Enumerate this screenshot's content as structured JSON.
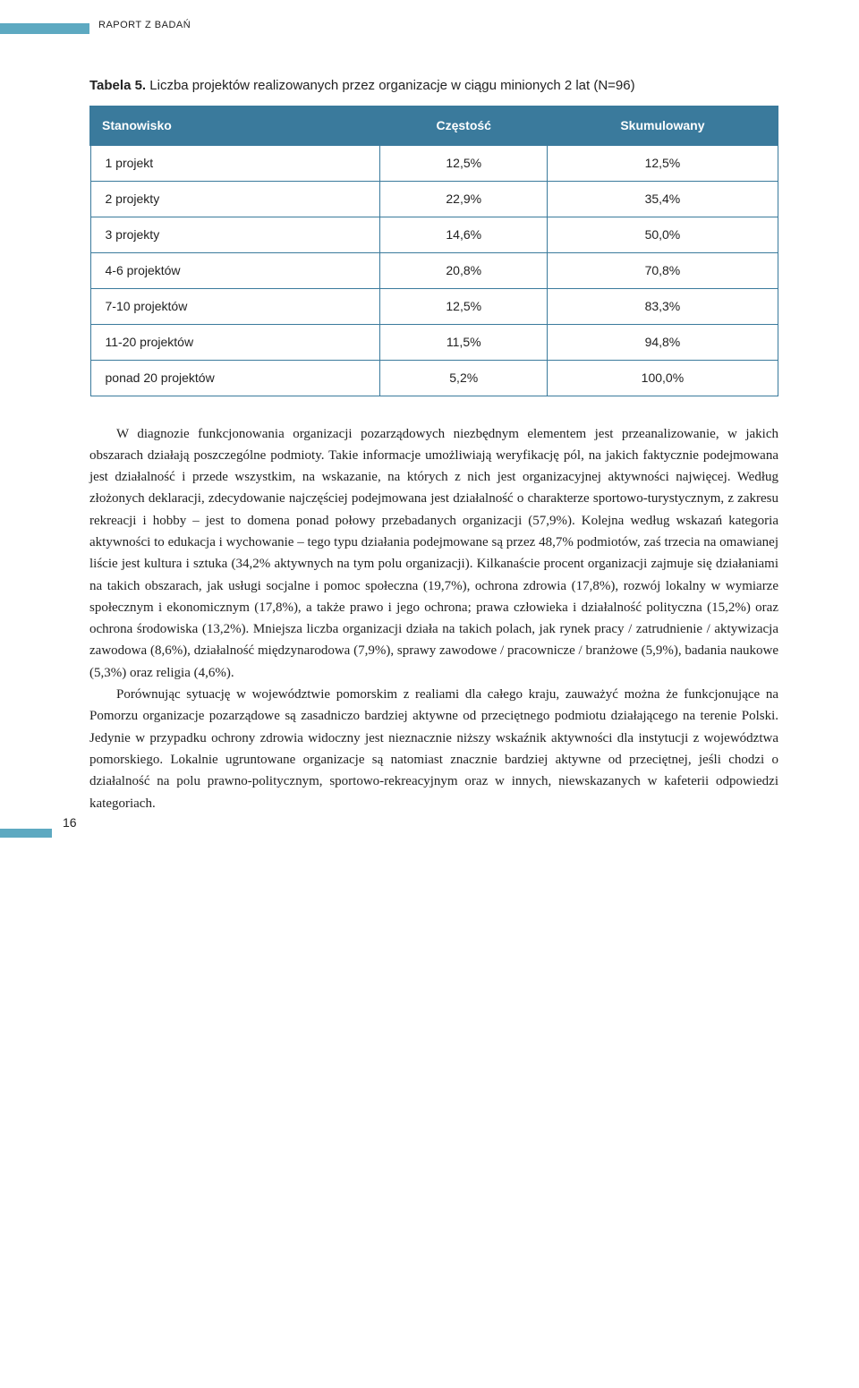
{
  "header": {
    "section_label": "RAPORT Z BADAŃ",
    "bar_color": "#5da9c1"
  },
  "table": {
    "caption_prefix": "Tabela 5.",
    "caption_text": "Liczba projektów realizowanych przez organizacje w ciągu minionych 2 lat (N=96)",
    "columns": [
      "Stanowisko",
      "Częstość",
      "Skumulowany"
    ],
    "rows": [
      [
        "1 projekt",
        "12,5%",
        "12,5%"
      ],
      [
        "2 projekty",
        "22,9%",
        "35,4%"
      ],
      [
        "3 projekty",
        "14,6%",
        "50,0%"
      ],
      [
        "4-6 projektów",
        "20,8%",
        "70,8%"
      ],
      [
        "7-10 projektów",
        "12,5%",
        "83,3%"
      ],
      [
        "11-20 projektów",
        "11,5%",
        "94,8%"
      ],
      [
        "ponad 20 projektów",
        "5,2%",
        "100,0%"
      ]
    ],
    "header_bg": "#3a7a9c",
    "header_text_color": "#ffffff",
    "border_color": "#3a7a9c",
    "fontsize": 14
  },
  "body": {
    "paragraphs": [
      "W diagnozie funkcjonowania organizacji pozarządowych niezbędnym elementem jest przeanalizowanie, w jakich obszarach działają poszczególne podmioty. Takie informacje umożliwiają weryfikację pól, na jakich faktycznie podejmowana jest działalność i przede wszystkim, na wskazanie, na których z nich jest organizacyjnej aktywności najwięcej. Według złożonych deklaracji, zdecydowanie najczęściej podejmowana jest działalność o charakterze sportowo-turystycznym, z zakresu rekreacji i hobby – jest to domena ponad połowy przebadanych organizacji (57,9%). Kolejna według wskazań kategoria aktywności to edukacja i wychowanie – tego typu działania podejmowane są przez 48,7% podmiotów, zaś trzecia na omawianej liście jest kultura i sztuka (34,2% aktywnych na tym polu organizacji). Kilkanaście procent organizacji zajmuje się działaniami na takich obszarach, jak usługi socjalne i pomoc społeczna (19,7%), ochrona zdrowia (17,8%), rozwój lokalny w wymiarze społecznym i ekonomicznym (17,8%), a także prawo i jego ochrona; prawa człowieka i działalność polityczna (15,2%) oraz ochrona środowiska (13,2%). Mniejsza liczba organizacji działa na takich polach, jak rynek pracy / zatrudnienie / aktywizacja zawodowa (8,6%), działalność międzynarodowa (7,9%), sprawy zawodowe / pracownicze / branżowe (5,9%), badania naukowe (5,3%) oraz religia (4,6%).",
      "Porównując sytuację w województwie pomorskim z realiami dla całego kraju, zauważyć można że funkcjonujące na Pomorzu organizacje pozarządowe są zasadniczo bardziej aktywne od przeciętnego podmiotu działającego na terenie Polski. Jedynie w przypadku ochrony zdrowia widoczny jest nieznacznie niższy wskaźnik aktywności dla instytucji z województwa pomorskiego. Lokalnie ugruntowane organizacje są natomiast znacznie bardziej aktywne od przeciętnej, jeśli chodzi o działalność na polu prawno-politycznym, sportowo-rekreacyjnym oraz w innych, niewskazanych w kafeterii odpowiedzi kategoriach."
    ],
    "text_color": "#222222",
    "fontsize": 15
  },
  "footer": {
    "page_number": "16",
    "bar_color": "#5da9c1"
  }
}
